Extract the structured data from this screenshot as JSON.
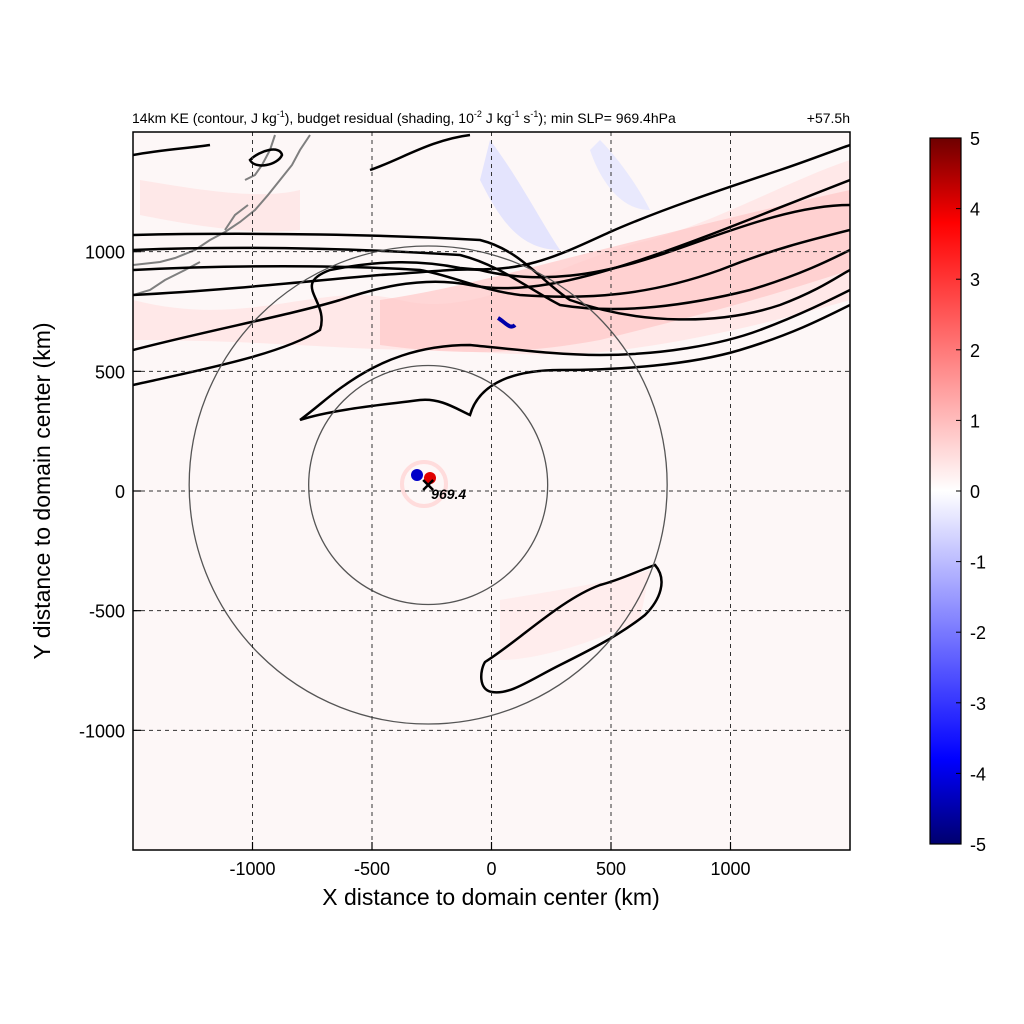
{
  "chart_data": {
    "type": "heatmap",
    "title_main": "14km KE (contour, J kg",
    "title_unit1_sup": "-1",
    "title_mid": "), budget residual (shading, 10",
    "title_sup2": "-2",
    "title_mid2": " J kg",
    "title_sup3": "-1",
    "title_mid3": " s",
    "title_sup4": "-1",
    "title_end": "); min SLP= 969.4hPa",
    "time_label": "+57.5h",
    "xlabel": "X distance to domain center (km)",
    "ylabel": "Y distance to domain center (km)",
    "xlim": [
      -1500,
      1500
    ],
    "ylim": [
      -1500,
      1500
    ],
    "x_ticks": [
      -1000,
      -500,
      0,
      500,
      1000
    ],
    "y_ticks": [
      1000,
      500,
      0,
      -500,
      -1000
    ],
    "x_tick_labels": [
      "-1000",
      "-500",
      "0",
      "500",
      "1000"
    ],
    "y_tick_labels": [
      "1000",
      "500",
      "0",
      "-500",
      "-1000"
    ],
    "grid": "dashed",
    "colorbar": {
      "min": -5,
      "max": 5,
      "ticks": [
        "5",
        "4",
        "3",
        "2",
        "1",
        "0",
        "-1",
        "-2",
        "-3",
        "-4",
        "-5"
      ],
      "colors": [
        "#00006e",
        "#0000ff",
        "#ffffff",
        "#ff0000",
        "#6e0000"
      ]
    },
    "center_marker": {
      "x": -265,
      "y": 25,
      "label": "969.4"
    },
    "range_circles_km": [
      500,
      1000
    ],
    "contour_color": "#000000",
    "coastline_color": "#7f7f7f"
  }
}
